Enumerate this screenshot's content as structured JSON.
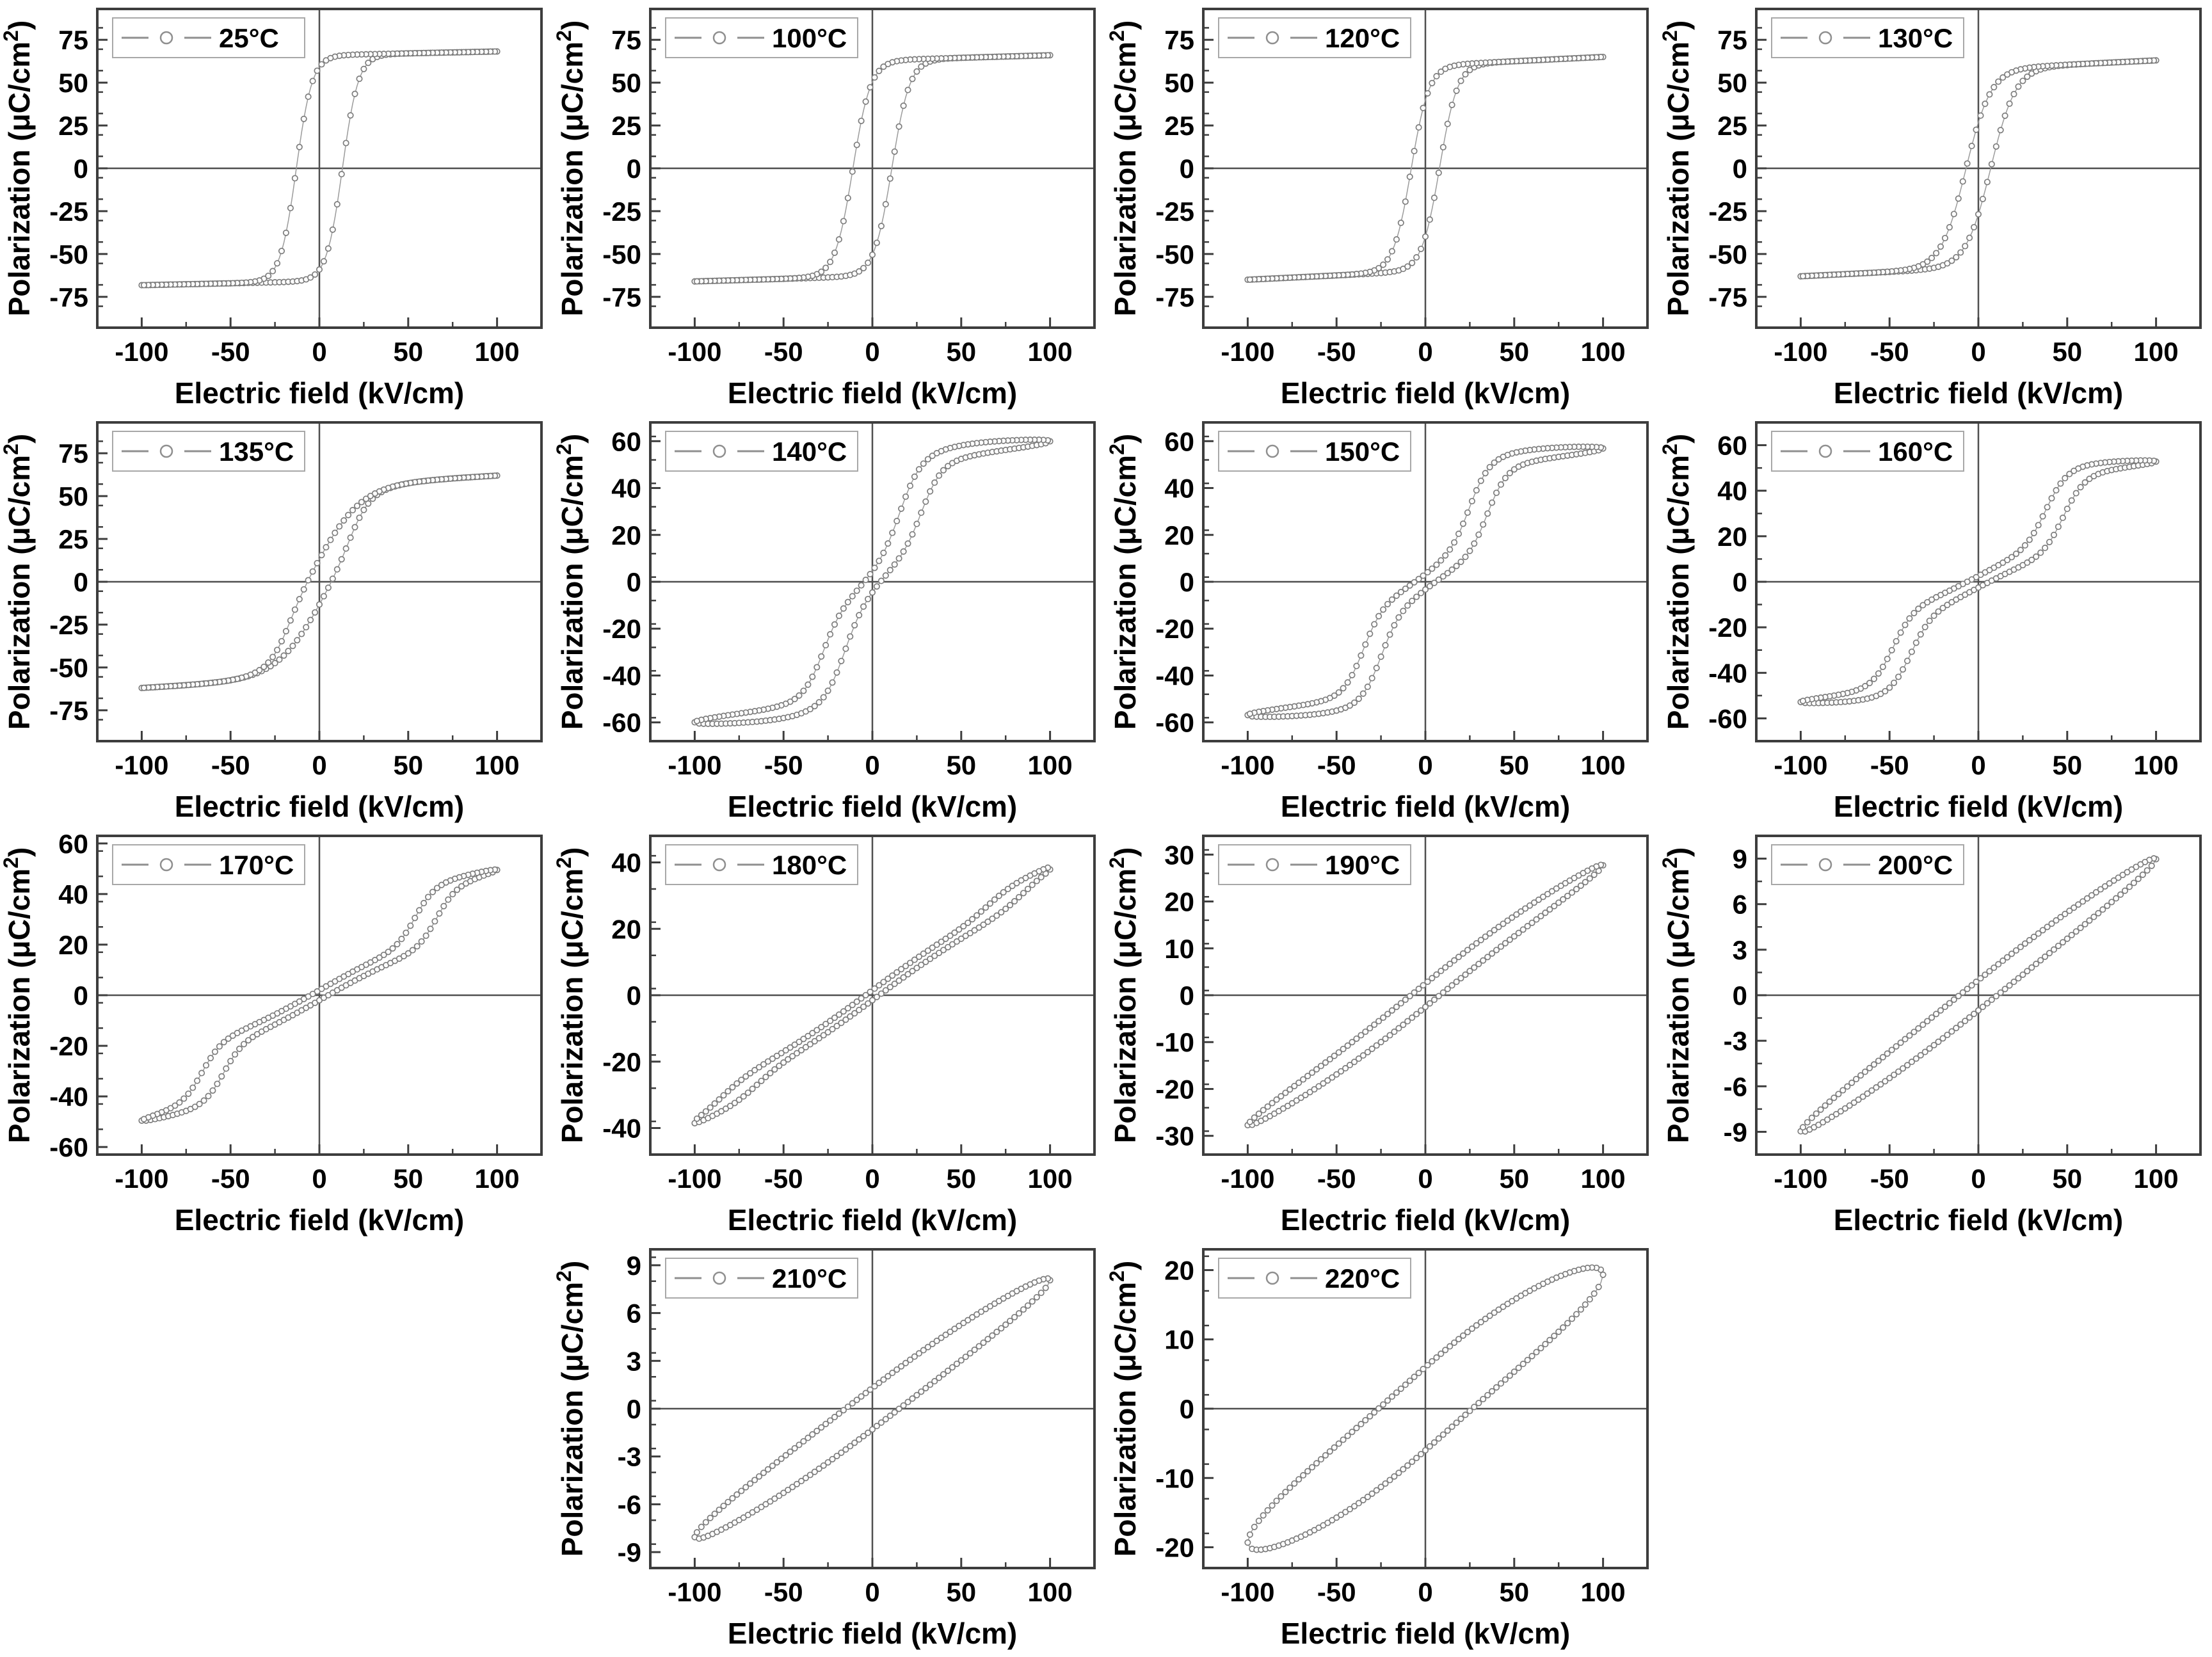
{
  "figure": {
    "x_label": "Electric field (kV/cm)",
    "y_label": "Polarization (μC/cm²)",
    "x_ticks": [
      -100,
      -50,
      0,
      50,
      100
    ],
    "x_minor_step": 25,
    "x_range": [
      -125,
      125
    ],
    "legend_symbol": "dash-circle-dash",
    "colors": {
      "curve": "#9b9b9b",
      "marker_stroke": "#7d7d7d",
      "marker_fill": "#ffffff",
      "axis_box": "#3d3d3d",
      "crosshair": "#4f4f4f",
      "legend_border": "#a8a8a8",
      "legend_symbol": "#8f8f8f",
      "text": "#000000",
      "background": "#ffffff"
    }
  },
  "chart_data": [
    {
      "type": "line",
      "temp": "25°C",
      "x": "E (kV/cm)",
      "y": "P (µC/cm²)",
      "xlim": [
        -125,
        125
      ],
      "ylim": 93,
      "yticks": [
        75,
        50,
        25,
        0,
        -25,
        -50,
        -75
      ],
      "pmax": 68,
      "pr": 58,
      "ec": 13,
      "shape": "square-ferroelectric",
      "loop": {
        "lin": 0.022,
        "aR": 0,
        "wR": 30,
        "aH1": 66,
        "c1": 13,
        "w1": 9,
        "aH2": 0,
        "cA": 0,
        "cB": 0,
        "w2": 10,
        "gap": 0
      }
    },
    {
      "type": "line",
      "temp": "100°C",
      "x": "E (kV/cm)",
      "y": "P (µC/cm²)",
      "xlim": [
        -125,
        125
      ],
      "ylim": 93,
      "yticks": [
        75,
        50,
        25,
        0,
        -25,
        -50,
        -75
      ],
      "pmax": 66,
      "pr": 51,
      "ec": 11,
      "shape": "square-ferroelectric",
      "loop": {
        "lin": 0.03,
        "aR": 0,
        "wR": 30,
        "aH1": 63,
        "c1": 11,
        "w1": 10,
        "aH2": 0,
        "cA": 0,
        "cB": 0,
        "w2": 10,
        "gap": 0
      }
    },
    {
      "type": "line",
      "temp": "120°C",
      "x": "E (kV/cm)",
      "y": "P (µC/cm²)",
      "xlim": [
        -125,
        125
      ],
      "ylim": 93,
      "yticks": [
        75,
        50,
        25,
        0,
        -25,
        -50,
        -75
      ],
      "pmax": 65,
      "pr": 40,
      "ec": 8,
      "shape": "slanted-ferroelectric",
      "loop": {
        "lin": 0.05,
        "aR": 0,
        "wR": 30,
        "aH1": 60,
        "c1": 8,
        "w1": 10,
        "aH2": 0,
        "cA": 0,
        "cB": 0,
        "w2": 10,
        "gap": 0
      }
    },
    {
      "type": "line",
      "temp": "130°C",
      "x": "E (kV/cm)",
      "y": "P (µC/cm²)",
      "xlim": [
        -125,
        125
      ],
      "ylim": 93,
      "yticks": [
        75,
        50,
        25,
        0,
        -25,
        -50,
        -75
      ],
      "pmax": 63,
      "pr": 27,
      "ec": 7,
      "shape": "slanted-ferroelectric",
      "loop": {
        "lin": 0.05,
        "aR": 0,
        "wR": 30,
        "aH1": 58,
        "c1": 7,
        "w1": 14,
        "aH2": 0,
        "cA": 0,
        "cB": 0,
        "w2": 10,
        "gap": 0
      }
    },
    {
      "type": "line",
      "temp": "135°C",
      "x": "E (kV/cm)",
      "y": "P (µC/cm²)",
      "xlim": [
        -125,
        125
      ],
      "ylim": 93,
      "yticks": [
        75,
        50,
        25,
        0,
        -25,
        -50,
        -75
      ],
      "pmax": 62,
      "pr": 13,
      "ec": 7,
      "shape": "slim-slanted",
      "loop": {
        "lin": 0.06,
        "aR": 42,
        "wR": 25,
        "aH1": 14,
        "c1": 18,
        "w1": 10,
        "aH2": 0,
        "cA": 0,
        "cB": 0,
        "w2": 10,
        "gap": 0
      }
    },
    {
      "type": "line",
      "temp": "140°C",
      "x": "E (kV/cm)",
      "y": "P (µC/cm²)",
      "xlim": [
        -125,
        125
      ],
      "ylim": 68,
      "yticks": [
        60,
        40,
        20,
        0,
        -20,
        -40,
        -60
      ],
      "pmax": 60,
      "pr": 4,
      "ec": 5,
      "shape": "pinched-double",
      "loop": {
        "lin": 0.06,
        "aR": 20,
        "wR": 30,
        "aH1": 0,
        "c1": 0,
        "w1": 10,
        "aH2": 34,
        "cA": 28,
        "cB": 16,
        "w2": 11,
        "gap": 3
      }
    },
    {
      "type": "line",
      "temp": "150°C",
      "x": "E (kV/cm)",
      "y": "P (µC/cm²)",
      "xlim": [
        -125,
        125
      ],
      "ylim": 68,
      "yticks": [
        60,
        40,
        20,
        0,
        -20,
        -40,
        -60
      ],
      "pmax": 57,
      "pr": 3,
      "ec": 3,
      "shape": "pinched-double",
      "loop": {
        "lin": 0.05,
        "aR": 16,
        "wR": 35,
        "aH1": 0,
        "c1": 0,
        "w1": 10,
        "aH2": 36,
        "cA": 35,
        "cB": 25,
        "w2": 11,
        "gap": 3
      }
    },
    {
      "type": "line",
      "temp": "160°C",
      "x": "E (kV/cm)",
      "y": "P (µC/cm²)",
      "xlim": [
        -125,
        125
      ],
      "ylim": 70,
      "yticks": [
        60,
        40,
        20,
        0,
        -20,
        -40,
        -60
      ],
      "pmax": 53,
      "pr": 2,
      "ec": 2,
      "shape": "pinched-double",
      "loop": {
        "lin": 0.05,
        "aR": 14,
        "wR": 40,
        "aH1": 0,
        "c1": 0,
        "w1": 10,
        "aH2": 34,
        "cA": 48,
        "cB": 38,
        "w2": 12,
        "gap": 2.5
      }
    },
    {
      "type": "line",
      "temp": "170°C",
      "x": "E (kV/cm)",
      "y": "P (µC/cm²)",
      "xlim": [
        -125,
        125
      ],
      "ylim": 63,
      "yticks": [
        60,
        40,
        20,
        0,
        -20,
        -40,
        -60
      ],
      "pmax": 49,
      "pr": 2,
      "ec": 5,
      "shape": "slim-double",
      "loop": {
        "lin": 0.16,
        "aR": 12,
        "wR": 50,
        "aH1": 0,
        "c1": 0,
        "w1": 10,
        "aH2": 22,
        "cA": 66,
        "cB": 54,
        "w2": 11,
        "gap": 2
      }
    },
    {
      "type": "line",
      "temp": "180°C",
      "x": "E (kV/cm)",
      "y": "P (µC/cm²)",
      "xlim": [
        -125,
        125
      ],
      "ylim": 48,
      "yticks": [
        40,
        20,
        0,
        -20,
        -40
      ],
      "pmax": 39,
      "pr": 2,
      "ec": 6,
      "shape": "slim-sigmoid",
      "loop": {
        "lin": 0.25,
        "aR": 8,
        "wR": 55,
        "aH1": 0,
        "c1": 0,
        "w1": 10,
        "aH2": 6,
        "cA": 85,
        "cB": 65,
        "w2": 15,
        "gap": 1.5
      }
    },
    {
      "type": "line",
      "temp": "190°C",
      "x": "E (kV/cm)",
      "y": "P (µC/cm²)",
      "xlim": [
        -125,
        125
      ],
      "ylim": 34,
      "yticks": [
        30,
        20,
        10,
        0,
        -10,
        -20,
        -30
      ],
      "pmax": 27,
      "pr": 2.5,
      "ec": 8,
      "shape": "thin-ellipse",
      "loop": {
        "lin": 0.24,
        "aR": 4,
        "wR": 60,
        "aH1": 0,
        "c1": 0,
        "w1": 10,
        "aH2": 0,
        "cA": 0,
        "cB": 0,
        "w2": 10,
        "gap": 2.5
      }
    },
    {
      "type": "line",
      "temp": "200°C",
      "x": "E (kV/cm)",
      "y": "P (µC/cm²)",
      "xlim": [
        -125,
        125
      ],
      "ylim": 10.5,
      "yticks": [
        9,
        6,
        3,
        0,
        -3,
        -6,
        -9
      ],
      "pmax": 9,
      "pr": 1,
      "ec": 10,
      "shape": "thin-ellipse",
      "loop": {
        "lin": 0.085,
        "aR": 0.5,
        "wR": 60,
        "aH1": 0,
        "c1": 0,
        "w1": 10,
        "aH2": 0,
        "cA": 0,
        "cB": 0,
        "w2": 10,
        "gap": 1.0
      }
    },
    {
      "type": "line",
      "temp": "210°C",
      "x": "E (kV/cm)",
      "y": "P (µC/cm²)",
      "xlim": [
        -125,
        125
      ],
      "ylim": 10,
      "yticks": [
        9,
        6,
        3,
        0,
        -3,
        -6,
        -9
      ],
      "pmax": 8.1,
      "pr": 1.3,
      "ec": 15,
      "shape": "thin-ellipse",
      "loop": {
        "lin": 0.075,
        "aR": 0.6,
        "wR": 60,
        "aH1": 0,
        "c1": 0,
        "w1": 10,
        "aH2": 0,
        "cA": 0,
        "cB": 0,
        "w2": 10,
        "gap": 1.3
      }
    },
    {
      "type": "line",
      "temp": "220°C",
      "x": "E (kV/cm)",
      "y": "P (µC/cm²)",
      "xlim": [
        -125,
        125
      ],
      "ylim": 23,
      "yticks": [
        20,
        10,
        0,
        -10,
        -20
      ],
      "pmax": 19.3,
      "pr": 6,
      "ec": 28,
      "shape": "fat-ellipse",
      "loop": {
        "lin": 0.16,
        "aR": 3.5,
        "wR": 55,
        "aH1": 0,
        "c1": 0,
        "w1": 10,
        "aH2": 0,
        "cA": 0,
        "cB": 0,
        "w2": 10,
        "gap": 6
      }
    }
  ]
}
